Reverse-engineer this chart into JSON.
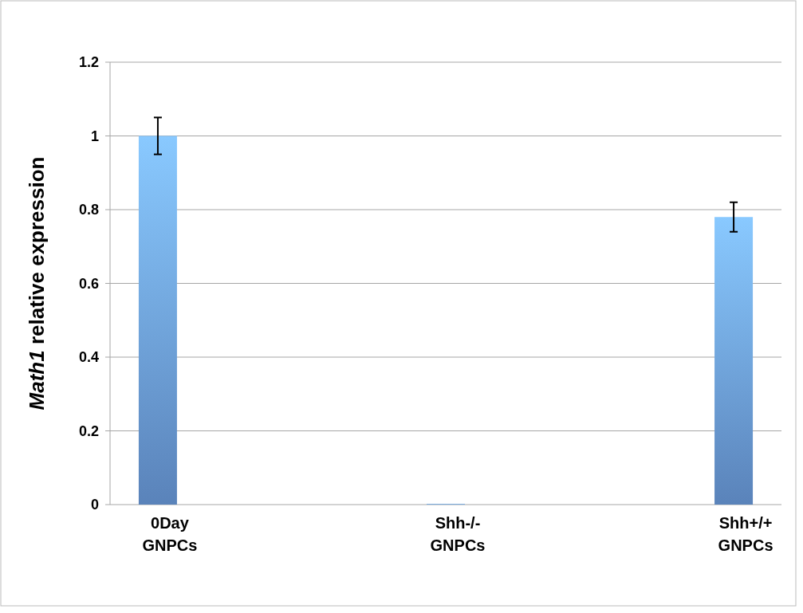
{
  "chart_data": {
    "type": "bar",
    "ylabel": "Math1 relative expression",
    "categories": [
      "0Day GNPCs",
      "Shh-/- GNPCs",
      "Shh+/+ GNPCs"
    ],
    "values": [
      1.0,
      0.002,
      0.78
    ],
    "errors": [
      0.05,
      null,
      [
        0.74,
        0.82
      ]
    ],
    "color": "#6fa2e6",
    "ylim": [
      0,
      1.2
    ],
    "yticks": [
      0,
      0.2,
      0.4,
      0.6,
      0.8,
      1,
      1.2
    ],
    "grid": "y"
  }
}
